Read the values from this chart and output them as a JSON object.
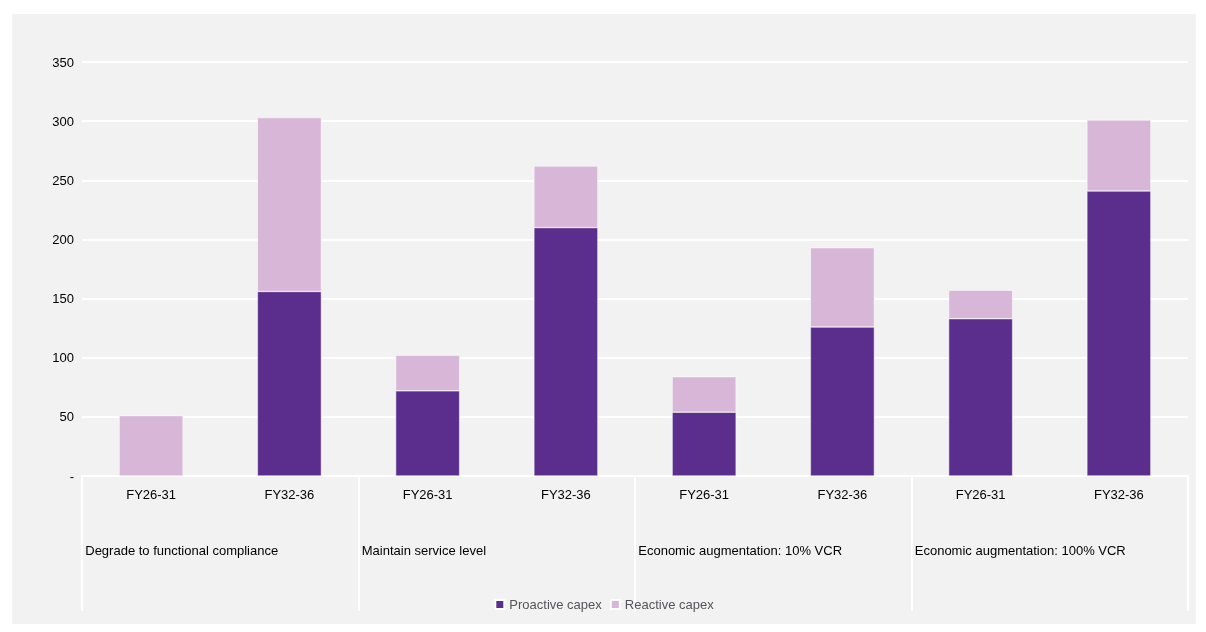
{
  "chart_data": {
    "type": "bar",
    "stacked": true,
    "categories": [
      "FY26-31",
      "FY32-36",
      "FY26-31",
      "FY32-36",
      "FY26-31",
      "FY32-36",
      "FY26-31",
      "FY32-36"
    ],
    "annotations": [
      "Degrade to functional compliance",
      "Maintain service level",
      "Economic augmentation: 10% VCR",
      "Economic augmentation: 100% VCR"
    ],
    "series": [
      {
        "name": "Proactive capex",
        "color": "#5b2d8c",
        "values": [
          0,
          156,
          72,
          210,
          54,
          126,
          133,
          241
        ]
      },
      {
        "name": "Reactive capex",
        "color": "#d8b6d8",
        "values": [
          51,
          147,
          30,
          52,
          30,
          67,
          24,
          60
        ]
      }
    ],
    "ylim": [
      0,
      350
    ],
    "yticks": [
      {
        "value": 0,
        "label": "-"
      },
      50,
      100,
      150,
      200,
      250,
      300,
      350
    ],
    "grid": "y",
    "legend": "bottom"
  }
}
